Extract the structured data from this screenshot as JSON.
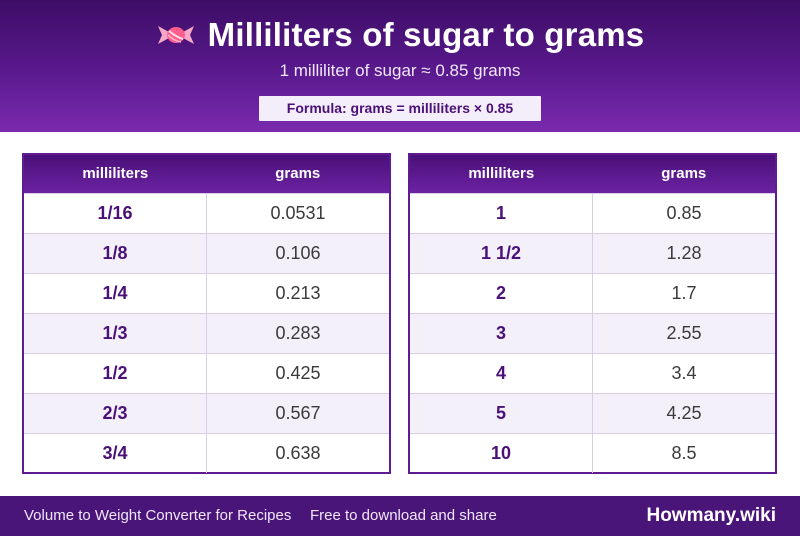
{
  "header": {
    "title": "Milliliters of sugar to grams",
    "subtitle": "1 milliliter of sugar ≈ 0.85 grams",
    "formula": "Formula: grams = milliliters × 0.85",
    "icon": "candy-icon"
  },
  "tables": [
    {
      "headers": [
        "milliliters",
        "grams"
      ],
      "rows": [
        {
          "ml": "1/16",
          "g": "0.0531"
        },
        {
          "ml": "1/8",
          "g": "0.106"
        },
        {
          "ml": "1/4",
          "g": "0.213"
        },
        {
          "ml": "1/3",
          "g": "0.283"
        },
        {
          "ml": "1/2",
          "g": "0.425"
        },
        {
          "ml": "2/3",
          "g": "0.567"
        },
        {
          "ml": "3/4",
          "g": "0.638"
        }
      ]
    },
    {
      "headers": [
        "milliliters",
        "grams"
      ],
      "rows": [
        {
          "ml": "1",
          "g": "0.85"
        },
        {
          "ml": "1 1/2",
          "g": "1.28"
        },
        {
          "ml": "2",
          "g": "1.7"
        },
        {
          "ml": "3",
          "g": "2.55"
        },
        {
          "ml": "4",
          "g": "3.4"
        },
        {
          "ml": "5",
          "g": "4.25"
        },
        {
          "ml": "10",
          "g": "8.5"
        }
      ]
    }
  ],
  "footer": {
    "left": "Volume to Weight Converter for Recipes",
    "middle": "Free to download and share",
    "brand": "Howmany.wiki"
  },
  "colors": {
    "primary": "#5a1a8e",
    "accent": "#4a1178",
    "row_alt": "#f4f0fa"
  }
}
